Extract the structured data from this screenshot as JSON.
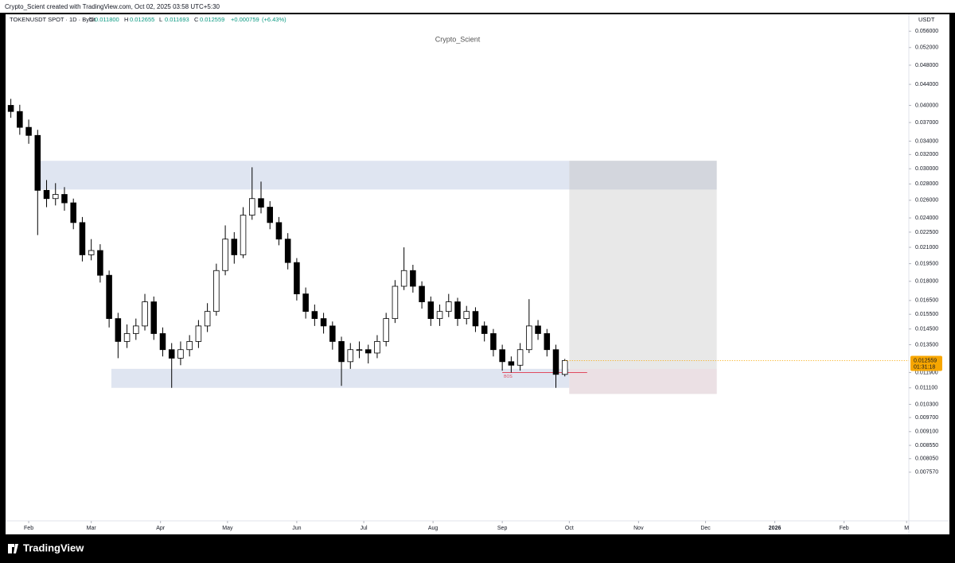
{
  "header": {
    "credit": "Crypto_Scient created with TradingView.com, Oct 02, 2025 03:58 UTC+5:30"
  },
  "footer": {
    "brand": "TradingView"
  },
  "chart_data": {
    "type": "candlestick",
    "legend": {
      "symbol": "TOKENUSDT SPOT · 1D · Bybit",
      "o": "O",
      "h": "H",
      "l": "L",
      "c": "C",
      "open": {
        "value": 0.0118,
        "label": "0.011800"
      },
      "high": {
        "value": 0.012655,
        "label": "0.012655"
      },
      "low": {
        "value": 0.011693,
        "label": "0.011693"
      },
      "close": {
        "value": 0.012559,
        "label": "0.012559"
      },
      "change": {
        "value": 0.000759,
        "label": "+0.000759"
      },
      "change_pct": {
        "value": 6.43,
        "label": "(+6.43%)"
      }
    },
    "watermark": "Crypto_Scient",
    "currency": "USDT",
    "countdown": "01:31:18",
    "last_price": {
      "value": 0.012559,
      "label": "0.012559"
    },
    "log_scale": true,
    "up_color": "#ffffff",
    "down_color": "#000000",
    "border_color": "#000000",
    "x": [
      2,
      6,
      10,
      14,
      18,
      22,
      26,
      30,
      34,
      38,
      42,
      46,
      50,
      54,
      58,
      62,
      66,
      70,
      74,
      78,
      82,
      86,
      90,
      94,
      98,
      102,
      106,
      110,
      114,
      118,
      122,
      126,
      130,
      134,
      138,
      142,
      146,
      150,
      154,
      158,
      162,
      166,
      170,
      174,
      178,
      182,
      186,
      190,
      194,
      198,
      202,
      206,
      210,
      214,
      218,
      222,
      226,
      230,
      234,
      238,
      242,
      246,
      250
    ],
    "open": [
      0.04,
      0.0389,
      0.0362,
      0.0349,
      0.0272,
      0.0262,
      0.0267,
      0.0257,
      0.0235,
      0.0203,
      0.0207,
      0.0185,
      0.0152,
      0.0137,
      0.0142,
      0.0147,
      0.0164,
      0.0142,
      0.0132,
      0.0127,
      0.0132,
      0.0137,
      0.0147,
      0.0157,
      0.0189,
      0.0218,
      0.0203,
      0.0243,
      0.0262,
      0.0252,
      0.0235,
      0.0218,
      0.0196,
      0.017,
      0.0157,
      0.0152,
      0.0147,
      0.0137,
      0.0125,
      0.0132,
      0.0132,
      0.013,
      0.0137,
      0.0152,
      0.0176,
      0.0189,
      0.0176,
      0.0164,
      0.0152,
      0.0157,
      0.0164,
      0.0152,
      0.0157,
      0.0147,
      0.0142,
      0.0132,
      0.0125,
      0.0123,
      0.0132,
      0.0147,
      0.0142,
      0.0132,
      0.0118
    ],
    "high": [
      0.0412,
      0.0401,
      0.0375,
      0.0358,
      0.0285,
      0.0281,
      0.0276,
      0.0262,
      0.0241,
      0.0218,
      0.0213,
      0.0189,
      0.0156,
      0.0148,
      0.0152,
      0.017,
      0.0168,
      0.0146,
      0.0136,
      0.0137,
      0.0141,
      0.0151,
      0.0163,
      0.0195,
      0.0232,
      0.0225,
      0.0252,
      0.0302,
      0.0283,
      0.0259,
      0.0241,
      0.0224,
      0.02,
      0.0175,
      0.0162,
      0.0156,
      0.015,
      0.014,
      0.0136,
      0.0137,
      0.0135,
      0.0141,
      0.0156,
      0.0181,
      0.021,
      0.0194,
      0.018,
      0.0168,
      0.0162,
      0.017,
      0.0167,
      0.0161,
      0.016,
      0.015,
      0.0145,
      0.0135,
      0.0128,
      0.0136,
      0.0166,
      0.0151,
      0.0145,
      0.0135,
      0.012655
    ],
    "low": [
      0.0378,
      0.035,
      0.0336,
      0.0222,
      0.0252,
      0.0254,
      0.0248,
      0.0228,
      0.0197,
      0.0198,
      0.0179,
      0.0146,
      0.0127,
      0.0133,
      0.0138,
      0.0144,
      0.0138,
      0.0128,
      0.0111,
      0.0123,
      0.0128,
      0.0133,
      0.0143,
      0.0154,
      0.0185,
      0.0195,
      0.02,
      0.0238,
      0.0245,
      0.0228,
      0.0212,
      0.019,
      0.0165,
      0.0152,
      0.0147,
      0.0142,
      0.0132,
      0.0112,
      0.0121,
      0.0127,
      0.0124,
      0.0127,
      0.0134,
      0.0149,
      0.0173,
      0.0171,
      0.0159,
      0.0147,
      0.0147,
      0.0153,
      0.0147,
      0.0148,
      0.0143,
      0.0137,
      0.0128,
      0.012,
      0.0119,
      0.012,
      0.013,
      0.0138,
      0.0128,
      0.0111,
      0.011693
    ],
    "close": [
      0.0389,
      0.0362,
      0.0349,
      0.0272,
      0.0262,
      0.0267,
      0.0257,
      0.0235,
      0.0203,
      0.0207,
      0.0185,
      0.0152,
      0.0137,
      0.0142,
      0.0147,
      0.0164,
      0.0142,
      0.0132,
      0.0127,
      0.0132,
      0.0137,
      0.0147,
      0.0157,
      0.0189,
      0.0218,
      0.0203,
      0.0243,
      0.0262,
      0.0252,
      0.0235,
      0.0218,
      0.0196,
      0.017,
      0.0157,
      0.0152,
      0.0147,
      0.0137,
      0.0125,
      0.0132,
      0.0132,
      0.013,
      0.0137,
      0.0152,
      0.0176,
      0.0189,
      0.0176,
      0.0164,
      0.0152,
      0.0157,
      0.0164,
      0.0152,
      0.0157,
      0.0147,
      0.0142,
      0.0132,
      0.0125,
      0.0123,
      0.0132,
      0.0147,
      0.0142,
      0.0132,
      0.0118,
      0.012559
    ],
    "zones": [
      {
        "x": [
          13,
          252
        ],
        "price": [
          0.0273,
          0.0311
        ],
        "color": "#dfe5f1"
      },
      {
        "x": [
          47,
          252
        ],
        "price": [
          0.0111,
          0.0121
        ],
        "color": "#dfe5f1"
      },
      {
        "x": [
          252,
          318
        ],
        "price": [
          0.0108,
          0.0311
        ],
        "color": "#e8e8e8"
      },
      {
        "x": [
          252,
          318
        ],
        "price": [
          0.0273,
          0.0311
        ],
        "color": "#d3d6dd"
      },
      {
        "x": [
          252,
          318
        ],
        "price": [
          0.0108,
          0.0121
        ],
        "color": "#ebe0e4"
      }
    ],
    "bos": {
      "label": "BOS",
      "price": 0.0119,
      "x": [
        222,
        260
      ],
      "color": "#e04a5f"
    },
    "xlim": [
      0,
      404
    ],
    "xticks": [
      {
        "value": 10,
        "label": "Feb"
      },
      {
        "value": 38,
        "label": "Mar"
      },
      {
        "value": 69,
        "label": "Apr"
      },
      {
        "value": 99,
        "label": "May"
      },
      {
        "value": 130,
        "label": "Jun"
      },
      {
        "value": 160,
        "label": "Jul"
      },
      {
        "value": 191,
        "label": "Aug"
      },
      {
        "value": 222,
        "label": "Sep"
      },
      {
        "value": 252,
        "label": "Oct"
      },
      {
        "value": 283,
        "label": "Nov"
      },
      {
        "value": 313,
        "label": "Dec"
      },
      {
        "value": 344,
        "label": "2026"
      },
      {
        "value": 375,
        "label": "Feb"
      },
      {
        "value": 403,
        "label": "M"
      }
    ],
    "ylim": [
      0.00607,
      0.0579
    ],
    "yticks": [
      {
        "value": 0.056,
        "label": "0.056000"
      },
      {
        "value": 0.052,
        "label": "0.052000"
      },
      {
        "value": 0.048,
        "label": "0.048000"
      },
      {
        "value": 0.044,
        "label": "0.044000"
      },
      {
        "value": 0.04,
        "label": "0.040000"
      },
      {
        "value": 0.037,
        "label": "0.037000"
      },
      {
        "value": 0.034,
        "label": "0.034000"
      },
      {
        "value": 0.032,
        "label": "0.032000"
      },
      {
        "value": 0.03,
        "label": "0.030000"
      },
      {
        "value": 0.028,
        "label": "0.028000"
      },
      {
        "value": 0.026,
        "label": "0.026000"
      },
      {
        "value": 0.024,
        "label": "0.024000"
      },
      {
        "value": 0.0225,
        "label": "0.022500"
      },
      {
        "value": 0.021,
        "label": "0.021000"
      },
      {
        "value": 0.0195,
        "label": "0.019500"
      },
      {
        "value": 0.018,
        "label": "0.018000"
      },
      {
        "value": 0.0165,
        "label": "0.016500"
      },
      {
        "value": 0.0155,
        "label": "0.015500"
      },
      {
        "value": 0.0145,
        "label": "0.014500"
      },
      {
        "value": 0.0135,
        "label": "0.013500"
      },
      {
        "value": 0.0119,
        "label": "0.011900"
      },
      {
        "value": 0.0111,
        "label": "0.011100"
      },
      {
        "value": 0.0103,
        "label": "0.010300"
      },
      {
        "value": 0.0097,
        "label": "0.009700"
      },
      {
        "value": 0.0091,
        "label": "0.009100"
      },
      {
        "value": 0.00855,
        "label": "0.008550"
      },
      {
        "value": 0.00805,
        "label": "0.008050"
      },
      {
        "value": 0.00757,
        "label": "0.007570"
      }
    ]
  }
}
